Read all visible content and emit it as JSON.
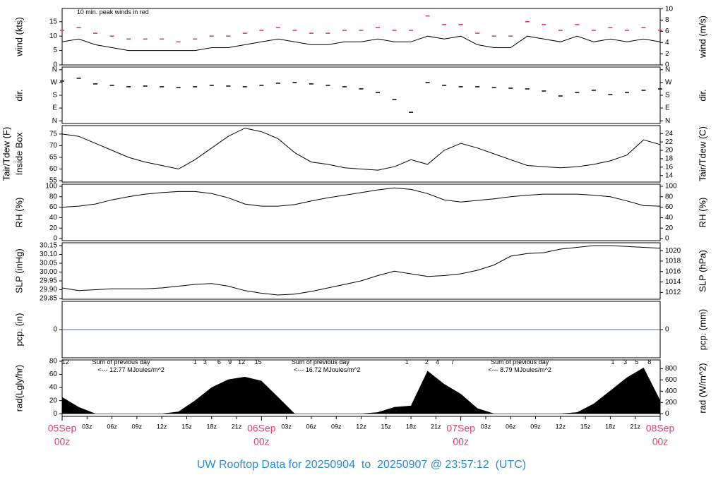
{
  "title": "UW Rooftop Data for 20250904  to  20250907 @ 23:57:12  (UTC)",
  "chart_data": [
    {
      "type": "line",
      "ylabel": "wind (kts)",
      "y2label": "wind (m/s)",
      "x": [
        0,
        2,
        4,
        6,
        8,
        10,
        12,
        14,
        16,
        18,
        20,
        22,
        24,
        26,
        28,
        30,
        32,
        34,
        36,
        38,
        40,
        42,
        44,
        46,
        48,
        50,
        52,
        54,
        56,
        58,
        60,
        62,
        64,
        66,
        68,
        70,
        72
      ],
      "xlim": [
        0,
        72
      ],
      "ylim": [
        0,
        19.6
      ],
      "yticks": [
        0,
        5,
        10,
        15
      ],
      "y2lim": [
        0,
        10.08
      ],
      "y2ticks": [
        0,
        2,
        4,
        6,
        8,
        10
      ],
      "series": [
        {
          "style": "line",
          "color": "#000000",
          "values": [
            8,
            9,
            7,
            6,
            5,
            5,
            5,
            5,
            5,
            6,
            6,
            7,
            8,
            9,
            8,
            7,
            7,
            8,
            8,
            9,
            8,
            8,
            10,
            9,
            10,
            7,
            6,
            6,
            10,
            9,
            8,
            10,
            8,
            9,
            8,
            9,
            8
          ]
        },
        {
          "style": "dash",
          "color": "#e03050",
          "values": [
            12,
            13,
            11,
            10,
            9,
            9,
            9,
            8,
            9,
            10,
            10,
            11,
            12,
            13,
            12,
            11,
            11,
            12,
            12,
            13,
            12,
            12,
            17,
            14,
            14,
            11,
            10,
            10,
            15,
            14,
            12,
            14,
            12,
            13,
            12,
            13,
            12
          ]
        }
      ],
      "annotations": [
        {
          "text": "10 min. peak winds in red",
          "x": 6.1,
          "y": 18.2,
          "color": "#e0406a"
        }
      ]
    },
    {
      "type": "scatter",
      "ylabel": "dir.",
      "y2label": "dir.",
      "x": [
        0,
        2,
        4,
        6,
        8,
        10,
        12,
        14,
        16,
        18,
        20,
        22,
        24,
        26,
        28,
        30,
        32,
        34,
        36,
        38,
        40,
        42,
        44,
        46,
        48,
        50,
        52,
        54,
        56,
        58,
        60,
        62,
        64,
        66,
        68,
        70,
        72
      ],
      "xlim": [
        0,
        72
      ],
      "ylim": [
        -19,
        379
      ],
      "yticks": [
        {
          "value": 0,
          "label": "N"
        },
        {
          "value": 90,
          "label": "E"
        },
        {
          "value": 180,
          "label": "S"
        },
        {
          "value": 270,
          "label": "W"
        },
        {
          "value": 360,
          "label": "N"
        }
      ],
      "series": [
        {
          "style": "dash",
          "color": "#000000",
          "values": [
            280,
            300,
            260,
            250,
            240,
            245,
            240,
            235,
            240,
            250,
            245,
            240,
            250,
            265,
            270,
            260,
            250,
            240,
            225,
            200,
            150,
            60,
            270,
            250,
            240,
            240,
            235,
            230,
            225,
            210,
            175,
            200,
            215,
            185,
            200,
            215,
            225
          ]
        }
      ]
    },
    {
      "type": "line",
      "ylabel": "Inside Box",
      "ylabel2": "Tair/Tdew (F)",
      "y2label": "Tair/Tdew (C)",
      "x": [
        0,
        2,
        4,
        6,
        8,
        10,
        12,
        14,
        16,
        18,
        20,
        22,
        24,
        26,
        28,
        30,
        32,
        34,
        36,
        38,
        40,
        42,
        44,
        46,
        48,
        50,
        52,
        54,
        56,
        58,
        60,
        62,
        64,
        66,
        68,
        70,
        72
      ],
      "xlim": [
        0,
        72
      ],
      "ylim": [
        54.4,
        78.6
      ],
      "yticks": [
        55,
        60,
        65,
        70,
        75
      ],
      "y2lim": [
        12.44,
        25.89
      ],
      "y2ticks": [
        14,
        16,
        18,
        20,
        22,
        24
      ],
      "series": [
        {
          "style": "line",
          "color": "#000000",
          "values": [
            75,
            74,
            71,
            68,
            65,
            63,
            61.5,
            60,
            64,
            69,
            74,
            77.5,
            76,
            73,
            67,
            63,
            62,
            60.5,
            60,
            59.5,
            61,
            64,
            62,
            68,
            71,
            69,
            66.5,
            64,
            61.5,
            61,
            60.5,
            61,
            62,
            63.5,
            66,
            72.5,
            70.5
          ]
        }
      ]
    },
    {
      "type": "line",
      "ylabel": "RH (%)",
      "y2label": "RH (%)",
      "x": [
        0,
        2,
        4,
        6,
        8,
        10,
        12,
        14,
        16,
        18,
        20,
        22,
        24,
        26,
        28,
        30,
        32,
        34,
        36,
        38,
        40,
        42,
        44,
        46,
        48,
        50,
        52,
        54,
        56,
        58,
        60,
        62,
        64,
        66,
        68,
        70,
        72
      ],
      "xlim": [
        0,
        72
      ],
      "ylim": [
        -4,
        104
      ],
      "yticks": [
        0,
        20,
        40,
        60,
        80,
        100
      ],
      "series": [
        {
          "style": "line",
          "color": "#000000",
          "values": [
            60,
            62,
            66,
            74,
            80,
            85,
            88,
            90,
            90,
            86,
            78,
            66,
            62,
            62,
            65,
            72,
            78,
            83,
            88,
            93,
            97,
            94,
            86,
            74,
            70,
            73,
            76,
            80,
            83,
            85,
            85,
            85,
            83,
            80,
            72,
            63,
            62
          ]
        }
      ]
    },
    {
      "type": "line",
      "ylabel": "SLP (inHg)",
      "y2label": "SLP (hPa)",
      "x": [
        0,
        2,
        4,
        6,
        8,
        10,
        12,
        14,
        16,
        18,
        20,
        22,
        24,
        26,
        28,
        30,
        32,
        34,
        36,
        38,
        40,
        42,
        44,
        46,
        48,
        50,
        52,
        54,
        56,
        58,
        60,
        62,
        64,
        66,
        68,
        70,
        72
      ],
      "xlim": [
        0,
        72
      ],
      "ylim": [
        29.846,
        30.166
      ],
      "yticks": [
        29.85,
        {
          "value": 29.9,
          "label": "29.90"
        },
        29.95,
        {
          "value": 30,
          "label": "30.00"
        },
        30.05,
        {
          "value": 30.1,
          "label": "30.10"
        },
        30.15
      ],
      "y2lim": [
        1010.7,
        1021.5
      ],
      "y2ticks": [
        1012,
        1014,
        1016,
        1018,
        1020
      ],
      "series": [
        {
          "style": "line",
          "color": "#000000",
          "values": [
            29.91,
            29.895,
            29.9,
            29.905,
            29.905,
            29.905,
            29.91,
            29.92,
            29.93,
            29.935,
            29.92,
            29.895,
            29.88,
            29.87,
            29.875,
            29.89,
            29.91,
            29.93,
            29.95,
            29.98,
            30.005,
            29.99,
            29.975,
            29.98,
            29.99,
            30.01,
            30.04,
            30.09,
            30.105,
            30.11,
            30.13,
            30.14,
            30.15,
            30.15,
            30.145,
            30.14,
            30.135
          ]
        }
      ]
    },
    {
      "type": "line",
      "ylabel": "pcp. (in)",
      "y2label": "pcp. (mm)",
      "x": [
        0,
        2,
        4,
        6,
        8,
        10,
        12,
        14,
        16,
        18,
        20,
        22,
        24,
        26,
        28,
        30,
        32,
        34,
        36,
        38,
        40,
        42,
        44,
        46,
        48,
        50,
        52,
        54,
        56,
        58,
        60,
        62,
        64,
        66,
        68,
        70,
        72
      ],
      "xlim": [
        0,
        72
      ],
      "ylim": [
        -1,
        1
      ],
      "yticks": [
        0
      ],
      "series": [
        {
          "style": "line",
          "color": "#4a6fbf",
          "values": [
            0,
            0,
            0,
            0,
            0,
            0,
            0,
            0,
            0,
            0,
            0,
            0,
            0,
            0,
            0,
            0,
            0,
            0,
            0,
            0,
            0,
            0,
            0,
            0,
            0,
            0,
            0,
            0,
            0,
            0,
            0,
            0,
            0,
            0,
            0,
            0,
            0
          ]
        }
      ]
    },
    {
      "type": "area",
      "ylabel": "rad(Lgly/hr)",
      "y2label": "rad (W/m^2)",
      "x": [
        0,
        2,
        4,
        6,
        8,
        10,
        12,
        14,
        16,
        18,
        20,
        22,
        24,
        26,
        28,
        30,
        32,
        34,
        36,
        38,
        40,
        42,
        44,
        46,
        48,
        50,
        52,
        54,
        56,
        58,
        60,
        62,
        64,
        66,
        68,
        70,
        72
      ],
      "xlim": [
        0,
        72
      ],
      "ylim": [
        -4,
        82
      ],
      "yticks": [
        0,
        20,
        40,
        60,
        80
      ],
      "y2lim": [
        -46.5,
        953.7
      ],
      "y2ticks": [
        0,
        200,
        400,
        600,
        800
      ],
      "series": [
        {
          "style": "area",
          "color": "#000000",
          "values": [
            25,
            10,
            0,
            0,
            0,
            0,
            0,
            3,
            20,
            40,
            52,
            56,
            50,
            25,
            0,
            0,
            0,
            0,
            0,
            2,
            10,
            12,
            65,
            45,
            30,
            8,
            0,
            0,
            0,
            0,
            0,
            2,
            15,
            35,
            55,
            70,
            20
          ]
        }
      ],
      "annotations": [
        {
          "text": "12",
          "x": 0.4,
          "y": 78,
          "color": "#9b30d0"
        },
        {
          "text": "Sum of previous day",
          "x": 7.1,
          "y": 78,
          "color": "#9b30d0"
        },
        {
          "text": "<--- 12.77 MJoules/m^2",
          "x": 8.3,
          "y": 66.5,
          "color": "#9b30d0"
        },
        {
          "text": "1",
          "x": 16.0,
          "y": 78,
          "color": "#9b30d0"
        },
        {
          "text": "3",
          "x": 17.2,
          "y": 78,
          "color": "#9b30d0"
        },
        {
          "text": "6",
          "x": 18.9,
          "y": 78,
          "color": "#9b30d0"
        },
        {
          "text": "9",
          "x": 20.2,
          "y": 78,
          "color": "#9b30d0"
        },
        {
          "text": "12",
          "x": 21.6,
          "y": 78,
          "color": "#9b30d0"
        },
        {
          "text": "15",
          "x": 23.6,
          "y": 78,
          "color": "#9b30d0"
        },
        {
          "text": "Sum of previous day",
          "x": 31.1,
          "y": 78,
          "color": "#9b30d0"
        },
        {
          "text": "<--- 16.72 MJoules/m^2",
          "x": 31.9,
          "y": 66.5,
          "color": "#9b30d0"
        },
        {
          "text": "1",
          "x": 41.5,
          "y": 78,
          "color": "#9b30d0"
        },
        {
          "text": "2",
          "x": 43.9,
          "y": 78,
          "color": "#9b30d0"
        },
        {
          "text": "4",
          "x": 45.2,
          "y": 78,
          "color": "#9b30d0"
        },
        {
          "text": "7",
          "x": 47.0,
          "y": 78,
          "color": "#9b30d0"
        },
        {
          "text": "Sum of previous day",
          "x": 55.1,
          "y": 78,
          "color": "#9b30d0"
        },
        {
          "text": "<--- 8.79 MJoules/m^2",
          "x": 55.1,
          "y": 66.5,
          "color": "#9b30d0"
        },
        {
          "text": "1",
          "x": 66.3,
          "y": 78,
          "color": "#9b30d0"
        },
        {
          "text": "3",
          "x": 67.8,
          "y": 78,
          "color": "#9b30d0"
        },
        {
          "text": "5",
          "x": 69.2,
          "y": 78,
          "color": "#9b30d0"
        },
        {
          "text": "8",
          "x": 70.7,
          "y": 78,
          "color": "#9b30d0"
        }
      ],
      "xticks": [
        {
          "value": 3,
          "label": "03z"
        },
        {
          "value": 6,
          "label": "06z"
        },
        {
          "value": 9,
          "label": "09z"
        },
        {
          "value": 12,
          "label": "12z"
        },
        {
          "value": 15,
          "label": "15z"
        },
        {
          "value": 18,
          "label": "18z"
        },
        {
          "value": 21,
          "label": "21z"
        },
        {
          "value": 27,
          "label": "03z"
        },
        {
          "value": 30,
          "label": "06z"
        },
        {
          "value": 33,
          "label": "09z"
        },
        {
          "value": 36,
          "label": "12z"
        },
        {
          "value": 39,
          "label": "15z"
        },
        {
          "value": 42,
          "label": "18z"
        },
        {
          "value": 45,
          "label": "21z"
        },
        {
          "value": 51,
          "label": "03z"
        },
        {
          "value": 54,
          "label": "06z"
        },
        {
          "value": 57,
          "label": "09z"
        },
        {
          "value": 60,
          "label": "12z"
        },
        {
          "value": 63,
          "label": "15z"
        },
        {
          "value": 66,
          "label": "18z"
        },
        {
          "value": 69,
          "label": "21z"
        }
      ],
      "xmajor": [
        {
          "value": 0,
          "label": "05Sep",
          "sublabel": "00z"
        },
        {
          "value": 24,
          "label": "06Sep",
          "sublabel": "00z"
        },
        {
          "value": 48,
          "label": "07Sep",
          "sublabel": "00z"
        },
        {
          "value": 72,
          "label": "08Sep",
          "sublabel": "00z"
        }
      ]
    }
  ]
}
